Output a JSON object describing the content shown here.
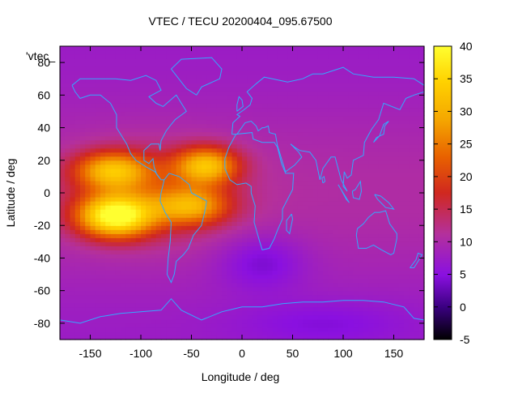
{
  "chart_data": {
    "type": "heatmap",
    "title": "VTEC / TECU 20200404_095.67500",
    "xlabel": "Longitude / deg",
    "ylabel": "Latitude / deg",
    "legend_label": "'vtec_",
    "xlim": [
      -180,
      180
    ],
    "ylim": [
      -90,
      90
    ],
    "x_ticks": [
      -150,
      -100,
      -50,
      0,
      50,
      100,
      150
    ],
    "y_ticks": [
      -80,
      -60,
      -40,
      -20,
      0,
      20,
      40,
      60,
      80
    ],
    "colorbar": {
      "range": [
        -5,
        40
      ],
      "ticks": [
        -5,
        0,
        5,
        10,
        15,
        20,
        25,
        30,
        35,
        40
      ],
      "palette": [
        "#000000",
        "#3a0080",
        "#8a10e0",
        "#b4309c",
        "#d0281f",
        "#e86000",
        "#f5a700",
        "#ffd200",
        "#ffff30"
      ],
      "palette_positions": [
        0.0,
        0.11,
        0.22,
        0.36,
        0.5,
        0.62,
        0.75,
        0.88,
        1.0
      ]
    },
    "background_value": 9,
    "features": [
      {
        "name": "equatorial anomaly Pacific south crest",
        "lon": -125,
        "lat": -14,
        "peak": 29,
        "sigma_lon": 26,
        "sigma_lat": 9
      },
      {
        "name": "equatorial anomaly Pacific north crest",
        "lon": -128,
        "lat": 14,
        "peak": 19,
        "sigma_lon": 26,
        "sigma_lat": 8
      },
      {
        "name": "equatorial anomaly Atlantic north crest",
        "lon": -35,
        "lat": 17,
        "peak": 20,
        "sigma_lon": 22,
        "sigma_lat": 8
      },
      {
        "name": "equatorial anomaly Atlantic south crest",
        "lon": -50,
        "lat": -8,
        "peak": 16,
        "sigma_lon": 26,
        "sigma_lat": 8
      },
      {
        "name": "equatorial band",
        "lon": -90,
        "lat": 0,
        "peak": 7,
        "sigma_lon": 55,
        "sigma_lat": 20
      },
      {
        "name": "South Atlantic depression",
        "lon": 20,
        "lat": -42,
        "peak": -5,
        "sigma_lon": 30,
        "sigma_lat": 12
      },
      {
        "name": "Antarctic depression",
        "lon": 80,
        "lat": -80,
        "peak": -3,
        "sigma_lon": 60,
        "sigma_lat": 10
      }
    ]
  }
}
